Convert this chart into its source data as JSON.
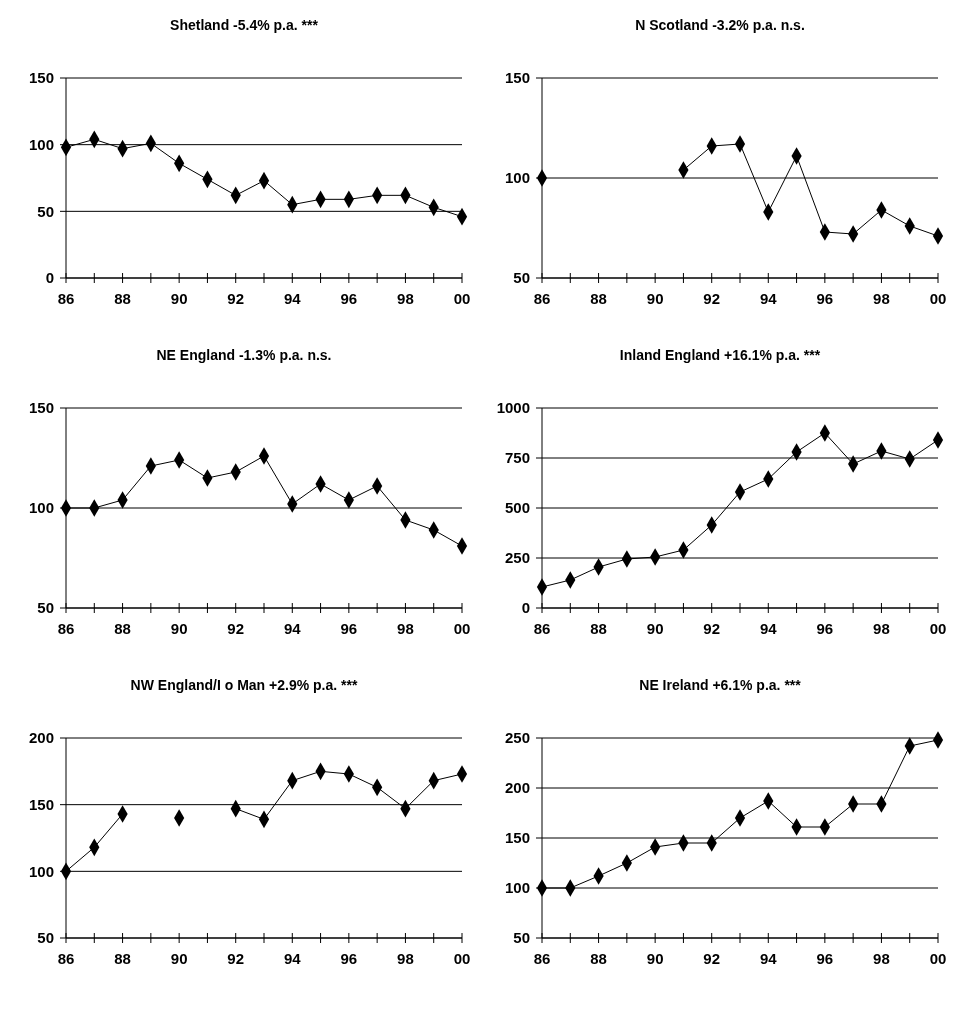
{
  "chart_data": [
    {
      "type": "line",
      "title": "Shetland -5.4% p.a. ***",
      "x": [
        1986,
        1987,
        1988,
        1989,
        1990,
        1991,
        1992,
        1993,
        1994,
        1995,
        1996,
        1997,
        1998,
        1999,
        2000
      ],
      "series": [
        {
          "color": "#000000",
          "values": [
            98,
            104,
            97,
            101,
            86,
            74,
            62,
            73,
            55,
            59,
            59,
            62,
            62,
            53,
            46
          ]
        }
      ],
      "xlim": [
        1986,
        2000
      ],
      "xticks": [
        {
          "value": 1986,
          "label": "86"
        },
        {
          "value": 1987,
          "label": null
        },
        {
          "value": 1988,
          "label": "88"
        },
        {
          "value": 1989,
          "label": null
        },
        {
          "value": 1990,
          "label": "90"
        },
        {
          "value": 1991,
          "label": null
        },
        {
          "value": 1992,
          "label": "92"
        },
        {
          "value": 1993,
          "label": null
        },
        {
          "value": 1994,
          "label": "94"
        },
        {
          "value": 1995,
          "label": null
        },
        {
          "value": 1996,
          "label": "96"
        },
        {
          "value": 1997,
          "label": null
        },
        {
          "value": 1998,
          "label": "98"
        },
        {
          "value": 1999,
          "label": null
        },
        {
          "value": 2000,
          "label": "00"
        }
      ],
      "ylim": [
        0,
        150
      ],
      "yticks": [
        0,
        50,
        100,
        150
      ],
      "grid": "y",
      "marker": "diamond"
    },
    {
      "type": "line",
      "title": "N Scotland -3.2% p.a. n.s.",
      "x": [
        1986,
        1987,
        1988,
        1989,
        1990,
        1991,
        1992,
        1993,
        1994,
        1995,
        1996,
        1997,
        1998,
        1999,
        2000
      ],
      "series": [
        {
          "color": "#000000",
          "values": [
            100,
            null,
            null,
            null,
            null,
            104,
            116,
            117,
            83,
            111,
            73,
            72,
            84,
            76,
            71
          ]
        }
      ],
      "xlim": [
        1986,
        2000
      ],
      "xticks": [
        {
          "value": 1986,
          "label": "86"
        },
        {
          "value": 1987,
          "label": null
        },
        {
          "value": 1988,
          "label": "88"
        },
        {
          "value": 1989,
          "label": null
        },
        {
          "value": 1990,
          "label": "90"
        },
        {
          "value": 1991,
          "label": null
        },
        {
          "value": 1992,
          "label": "92"
        },
        {
          "value": 1993,
          "label": null
        },
        {
          "value": 1994,
          "label": "94"
        },
        {
          "value": 1995,
          "label": null
        },
        {
          "value": 1996,
          "label": "96"
        },
        {
          "value": 1997,
          "label": null
        },
        {
          "value": 1998,
          "label": "98"
        },
        {
          "value": 1999,
          "label": null
        },
        {
          "value": 2000,
          "label": "00"
        }
      ],
      "ylim": [
        50,
        150
      ],
      "yticks": [
        50,
        100,
        150
      ],
      "grid": "y",
      "marker": "diamond"
    },
    {
      "type": "line",
      "title": "NE England -1.3% p.a. n.s.",
      "x": [
        1986,
        1987,
        1988,
        1989,
        1990,
        1991,
        1992,
        1993,
        1994,
        1995,
        1996,
        1997,
        1998,
        1999,
        2000
      ],
      "series": [
        {
          "color": "#000000",
          "values": [
            100,
            100,
            104,
            121,
            124,
            115,
            118,
            126,
            102,
            112,
            104,
            111,
            94,
            89,
            81
          ]
        }
      ],
      "xlim": [
        1986,
        2000
      ],
      "xticks": [
        {
          "value": 1986,
          "label": "86"
        },
        {
          "value": 1987,
          "label": null
        },
        {
          "value": 1988,
          "label": "88"
        },
        {
          "value": 1989,
          "label": null
        },
        {
          "value": 1990,
          "label": "90"
        },
        {
          "value": 1991,
          "label": null
        },
        {
          "value": 1992,
          "label": "92"
        },
        {
          "value": 1993,
          "label": null
        },
        {
          "value": 1994,
          "label": "94"
        },
        {
          "value": 1995,
          "label": null
        },
        {
          "value": 1996,
          "label": "96"
        },
        {
          "value": 1997,
          "label": null
        },
        {
          "value": 1998,
          "label": "98"
        },
        {
          "value": 1999,
          "label": null
        },
        {
          "value": 2000,
          "label": "00"
        }
      ],
      "ylim": [
        50,
        150
      ],
      "yticks": [
        50,
        100,
        150
      ],
      "grid": "y",
      "marker": "diamond"
    },
    {
      "type": "line",
      "title": "Inland England +16.1% p.a. ***",
      "x": [
        1986,
        1987,
        1988,
        1989,
        1990,
        1991,
        1992,
        1993,
        1994,
        1995,
        1996,
        1997,
        1998,
        1999,
        2000
      ],
      "series": [
        {
          "color": "#000000",
          "values": [
            105,
            140,
            205,
            245,
            255,
            290,
            415,
            580,
            645,
            780,
            875,
            720,
            785,
            745,
            840
          ]
        }
      ],
      "xlim": [
        1986,
        2000
      ],
      "xticks": [
        {
          "value": 1986,
          "label": "86"
        },
        {
          "value": 1987,
          "label": null
        },
        {
          "value": 1988,
          "label": "88"
        },
        {
          "value": 1989,
          "label": null
        },
        {
          "value": 1990,
          "label": "90"
        },
        {
          "value": 1991,
          "label": null
        },
        {
          "value": 1992,
          "label": "92"
        },
        {
          "value": 1993,
          "label": null
        },
        {
          "value": 1994,
          "label": "94"
        },
        {
          "value": 1995,
          "label": null
        },
        {
          "value": 1996,
          "label": "96"
        },
        {
          "value": 1997,
          "label": null
        },
        {
          "value": 1998,
          "label": "98"
        },
        {
          "value": 1999,
          "label": null
        },
        {
          "value": 2000,
          "label": "00"
        }
      ],
      "ylim": [
        0,
        1000
      ],
      "yticks": [
        0,
        250,
        500,
        750,
        1000
      ],
      "grid": "y",
      "marker": "diamond"
    },
    {
      "type": "line",
      "title": "NW England/I o Man +2.9% p.a. ***",
      "x": [
        1986,
        1987,
        1988,
        1989,
        1990,
        1991,
        1992,
        1993,
        1994,
        1995,
        1996,
        1997,
        1998,
        1999,
        2000
      ],
      "series": [
        {
          "color": "#000000",
          "values": [
            100,
            118,
            143,
            null,
            140,
            null,
            147,
            139,
            168,
            175,
            173,
            163,
            147,
            168,
            173
          ]
        }
      ],
      "xlim": [
        1986,
        2000
      ],
      "xticks": [
        {
          "value": 1986,
          "label": "86"
        },
        {
          "value": 1987,
          "label": null
        },
        {
          "value": 1988,
          "label": "88"
        },
        {
          "value": 1989,
          "label": null
        },
        {
          "value": 1990,
          "label": "90"
        },
        {
          "value": 1991,
          "label": null
        },
        {
          "value": 1992,
          "label": "92"
        },
        {
          "value": 1993,
          "label": null
        },
        {
          "value": 1994,
          "label": "94"
        },
        {
          "value": 1995,
          "label": null
        },
        {
          "value": 1996,
          "label": "96"
        },
        {
          "value": 1997,
          "label": null
        },
        {
          "value": 1998,
          "label": "98"
        },
        {
          "value": 1999,
          "label": null
        },
        {
          "value": 2000,
          "label": "00"
        }
      ],
      "ylim": [
        50,
        200
      ],
      "yticks": [
        50,
        100,
        150,
        200
      ],
      "grid": "y",
      "marker": "diamond"
    },
    {
      "type": "line",
      "title": "NE Ireland +6.1% p.a. ***",
      "x": [
        1986,
        1987,
        1988,
        1989,
        1990,
        1991,
        1992,
        1993,
        1994,
        1995,
        1996,
        1997,
        1998,
        1999,
        2000
      ],
      "series": [
        {
          "color": "#000000",
          "values": [
            100,
            100,
            112,
            125,
            141,
            145,
            145,
            170,
            187,
            161,
            161,
            184,
            184,
            242,
            248
          ]
        }
      ],
      "xlim": [
        1986,
        2000
      ],
      "xticks": [
        {
          "value": 1986,
          "label": "86"
        },
        {
          "value": 1987,
          "label": null
        },
        {
          "value": 1988,
          "label": "88"
        },
        {
          "value": 1989,
          "label": null
        },
        {
          "value": 1990,
          "label": "90"
        },
        {
          "value": 1991,
          "label": null
        },
        {
          "value": 1992,
          "label": "92"
        },
        {
          "value": 1993,
          "label": null
        },
        {
          "value": 1994,
          "label": "94"
        },
        {
          "value": 1995,
          "label": null
        },
        {
          "value": 1996,
          "label": "96"
        },
        {
          "value": 1997,
          "label": null
        },
        {
          "value": 1998,
          "label": "98"
        },
        {
          "value": 1999,
          "label": null
        },
        {
          "value": 2000,
          "label": "00"
        }
      ],
      "ylim": [
        50,
        250
      ],
      "yticks": [
        50,
        100,
        150,
        200,
        250
      ],
      "grid": "y",
      "marker": "diamond"
    }
  ]
}
